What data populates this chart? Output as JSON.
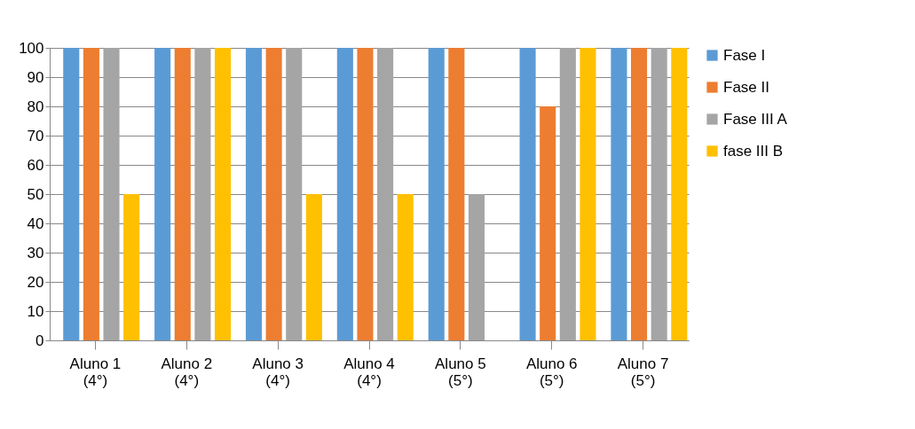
{
  "chart_data": {
    "type": "bar",
    "categories": [
      "Aluno 1\n(4°)",
      "Aluno 2\n(4°)",
      "Aluno 3\n(4°)",
      "Aluno 4\n(4°)",
      "Aluno 5\n(5°)",
      "Aluno 6\n(5°)",
      "Aluno 7\n(5°)"
    ],
    "series": [
      {
        "name": "Fase I",
        "color": "#5b9bd5",
        "values": [
          100,
          100,
          100,
          100,
          100,
          100,
          100
        ]
      },
      {
        "name": "Fase II",
        "color": "#ed7d31",
        "values": [
          100,
          100,
          100,
          100,
          100,
          80,
          100
        ]
      },
      {
        "name": "Fase III A",
        "color": "#a5a5a5",
        "values": [
          100,
          100,
          100,
          100,
          50,
          100,
          100
        ]
      },
      {
        "name": "fase III B",
        "color": "#ffc000",
        "values": [
          50,
          100,
          50,
          50,
          0,
          100,
          100
        ]
      }
    ],
    "ylim": [
      0,
      100
    ],
    "yticks": [
      0,
      10,
      20,
      30,
      40,
      50,
      60,
      70,
      80,
      90,
      100
    ],
    "grid": "y",
    "legend": "right"
  }
}
